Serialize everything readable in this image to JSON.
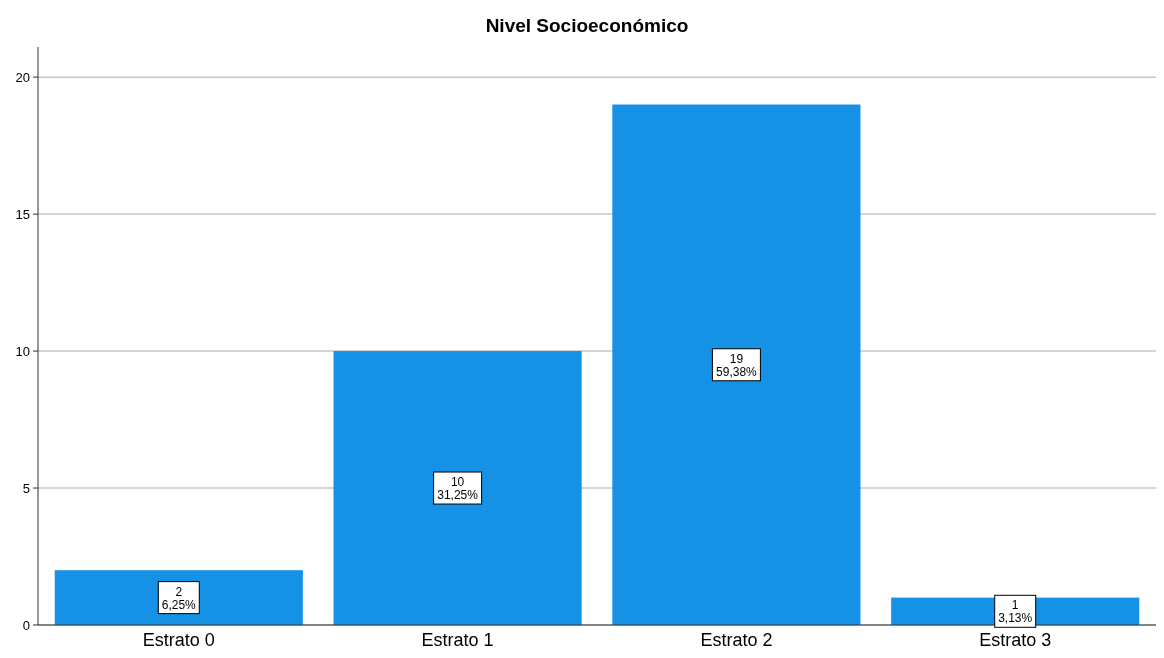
{
  "chart_data": {
    "type": "bar",
    "title": "Nivel Socioeconómico",
    "categories": [
      "Estrato 0",
      "Estrato 1",
      "Estrato 2",
      "Estrato 3"
    ],
    "values": [
      2,
      10,
      19,
      1
    ],
    "color": "#1591e6",
    "value_labels": [
      "2\n6,25%",
      "10\n31,25%",
      "19\n59,38%",
      "1\n3,13%"
    ],
    "ylim": [
      0,
      21.1
    ],
    "yticks": [
      0,
      5,
      10,
      15,
      20
    ],
    "grid": "y"
  }
}
